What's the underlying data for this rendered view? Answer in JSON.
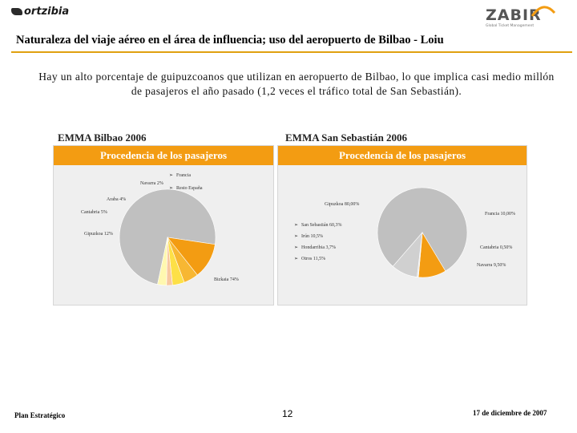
{
  "header": {
    "logo_left": "ortzibia",
    "logo_right": "ZABIR",
    "logo_right_tagline": "Global Ticket Management",
    "title": "Naturaleza del viaje aéreo en el área de influencia; uso del aeropuerto de Bilbao - Loiu"
  },
  "subtitle": "Hay un alto porcentaje de guipuzcoanos que utilizan en aeropuerto de Bilbao, lo que implica casi medio millón de pasajeros el año pasado (1,2 veces el tráfico total de San Sebastián).",
  "panels": {
    "left_label": "EMMA Bilbao 2006",
    "right_label": "EMMA San Sebastián 2006",
    "left_header": "Procedencia de los pasajeros",
    "right_header": "Procedencia de los pasajeros"
  },
  "chart_data": [
    {
      "type": "pie",
      "title": "EMMA Bilbao 2006",
      "subtitle": "Procedencia de los pasajeros",
      "slices": [
        {
          "label": "Bizkaia",
          "value": 74,
          "text": "Bizkaia 74%",
          "color": "#c0c0c0"
        },
        {
          "label": "Gipuzkoa",
          "value": 12,
          "text": "Gipuzkoa 12%",
          "color": "#f39c12"
        },
        {
          "label": "Cantabria",
          "value": 5,
          "text": "Cantabria 5%",
          "color": "#f7b733"
        },
        {
          "label": "Araba",
          "value": 4,
          "text": "Araba 4%",
          "color": "#fde047"
        },
        {
          "label": "Navarra",
          "value": 2,
          "text": "Navarra 2%",
          "color": "#f8c9a0"
        },
        {
          "label": "Resto",
          "value": 3,
          "text": "",
          "color": "#fff8b0"
        }
      ],
      "legend": [
        "Francia",
        "Resto España"
      ]
    },
    {
      "type": "pie",
      "title": "EMMA San Sebastián 2006",
      "subtitle": "Procedencia de los pasajeros",
      "slices": [
        {
          "label": "Gipuzkoa",
          "value": 80.0,
          "text": "Gipuzkoa 80,00%",
          "color": "#c0c0c0"
        },
        {
          "label": "Francia",
          "value": 10.0,
          "text": "Francia 10,00%",
          "color": "#f39c12"
        },
        {
          "label": "Cantabria",
          "value": 0.5,
          "text": "Cantabria 0,50%",
          "color": "#e8e8e8"
        },
        {
          "label": "Navarra",
          "value": 9.5,
          "text": "Navarra 9,50%",
          "color": "#d0d0d0"
        }
      ],
      "legend": [
        "San Sebastián 60,3%",
        "Irún 10,5%",
        "Hondarribia 3,7%",
        "Otros 11,5%"
      ]
    }
  ],
  "footer": {
    "left": "Plan Estratégico",
    "page": "12",
    "date": "17 de diciembre de 2007"
  }
}
